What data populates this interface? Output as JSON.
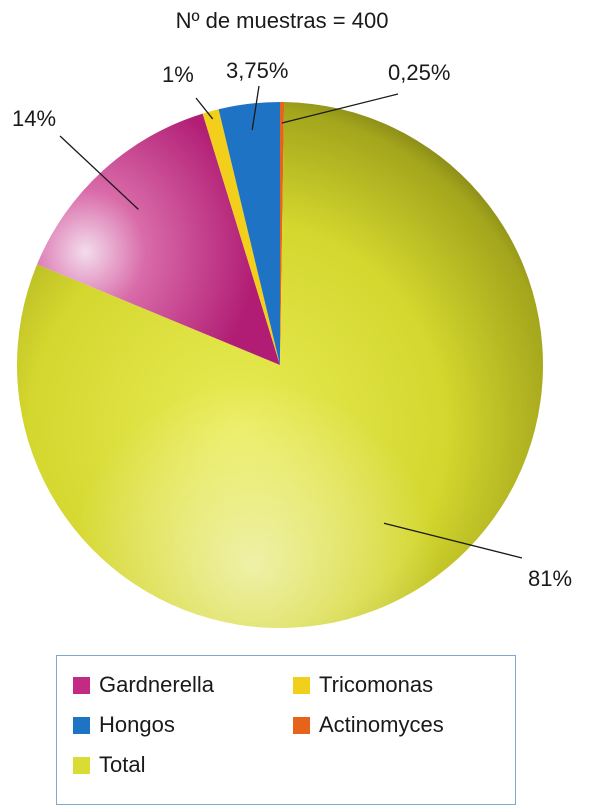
{
  "chart_data": {
    "type": "pie",
    "title": "Nº de muestras = 400",
    "slices": [
      {
        "name": "Actinomyces",
        "value": 0.25,
        "label": "0,25%",
        "color": "#e5631a"
      },
      {
        "name": "Total",
        "value": 81,
        "label": "81%",
        "color": "#d9dc33"
      },
      {
        "name": "Gardnerella",
        "value": 14,
        "label": "14%",
        "color": "#c32a84"
      },
      {
        "name": "Tricomonas",
        "value": 1,
        "label": "1%",
        "color": "#f2cf1b"
      },
      {
        "name": "Hongos",
        "value": 3.75,
        "label": "3,75%",
        "color": "#1f73c4"
      }
    ],
    "legend": {
      "placement": "bottom",
      "entries": [
        {
          "name": "Gardnerella",
          "color": "#c32a84"
        },
        {
          "name": "Tricomonas",
          "color": "#f2cf1b"
        },
        {
          "name": "Hongos",
          "color": "#1f73c4"
        },
        {
          "name": "Actinomyces",
          "color": "#e5631a"
        },
        {
          "name": "Total",
          "color": "#d9dc33"
        }
      ]
    }
  }
}
